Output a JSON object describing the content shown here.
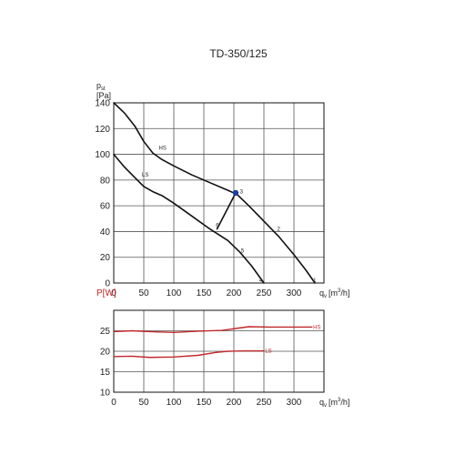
{
  "chart_data": [
    {
      "type": "line",
      "title": "TD-350/125",
      "ylabel": {
        "main": "p",
        "sub": "st",
        "unit": "[Pa]"
      },
      "xlabel": {
        "main": "q",
        "sub": "v",
        "unit_pre": "[m",
        "unit_sup": "3",
        "unit_post": "/h]"
      },
      "xlim": [
        0,
        350
      ],
      "ylim": [
        0,
        140
      ],
      "xticks": [
        0,
        50,
        100,
        150,
        200,
        250,
        300
      ],
      "yticks": [
        0,
        20,
        40,
        60,
        80,
        100,
        120,
        140
      ],
      "grid": true,
      "series": [
        {
          "name": "HS",
          "color": "#111111",
          "x": [
            0,
            18,
            35,
            50,
            65,
            80,
            100,
            130,
            160,
            190,
            205,
            225,
            250,
            275,
            300,
            320,
            335
          ],
          "y": [
            140,
            132,
            122,
            110,
            101,
            96,
            91,
            84,
            78,
            72,
            69,
            60,
            48,
            36,
            22,
            10,
            0
          ]
        },
        {
          "name": "LS",
          "color": "#111111",
          "x": [
            0,
            18,
            35,
            50,
            65,
            80,
            100,
            130,
            160,
            190,
            210,
            230,
            250
          ],
          "y": [
            100,
            90,
            82,
            75,
            71,
            68,
            62,
            52,
            42,
            33,
            24,
            13,
            0
          ]
        },
        {
          "name": "",
          "color": "#111111",
          "x": [
            203,
            172
          ],
          "y": [
            70,
            42
          ]
        }
      ],
      "annotations": [
        {
          "text": "HS",
          "x": 75,
          "y": 105
        },
        {
          "text": "LS",
          "x": 47,
          "y": 84
        },
        {
          "text": "1",
          "x": 332,
          "y": 2
        },
        {
          "text": "2",
          "x": 272,
          "y": 42
        },
        {
          "text": "3",
          "x": 210,
          "y": 71
        },
        {
          "text": "4",
          "x": 242,
          "y": 2
        },
        {
          "text": "5",
          "x": 212,
          "y": 25
        },
        {
          "text": "6",
          "x": 170,
          "y": 45
        }
      ],
      "markers": [
        {
          "x": 203,
          "y": 70,
          "color": "#1a3f9c"
        }
      ]
    },
    {
      "type": "line",
      "title": "",
      "ylabel": {
        "main": "P",
        "sub": "",
        "unit": "[W]"
      },
      "xlabel": {
        "main": "q",
        "sub": "v",
        "unit_pre": "[m",
        "unit_sup": "3",
        "unit_post": "/h]"
      },
      "xlim": [
        0,
        350
      ],
      "ylim": [
        10,
        30
      ],
      "xticks": [
        0,
        50,
        100,
        150,
        200,
        250,
        300
      ],
      "yticks": [
        10,
        15,
        20,
        25
      ],
      "grid": true,
      "series": [
        {
          "name": "HS",
          "color": "#c0282a",
          "x": [
            0,
            30,
            60,
            100,
            140,
            180,
            200,
            225,
            260,
            300,
            330
          ],
          "y": [
            24.8,
            25.0,
            24.8,
            24.6,
            24.9,
            25.1,
            25.5,
            26.0,
            25.9,
            25.9,
            25.9
          ]
        },
        {
          "name": "LS",
          "color": "#c0282a",
          "x": [
            0,
            30,
            60,
            100,
            140,
            170,
            190,
            220,
            250
          ],
          "y": [
            18.7,
            18.8,
            18.5,
            18.6,
            19.0,
            19.7,
            20.0,
            20.1,
            20.1
          ]
        }
      ],
      "annotations": [
        {
          "text": "HS",
          "x": 332,
          "y": 25.9
        },
        {
          "text": "LS",
          "x": 252,
          "y": 20.1
        }
      ],
      "markers": []
    }
  ]
}
